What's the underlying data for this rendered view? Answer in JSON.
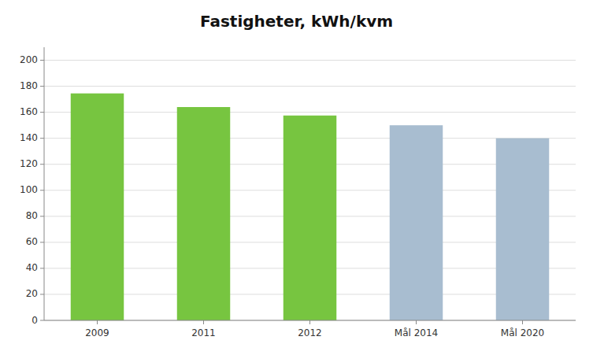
{
  "chart_data": {
    "type": "bar",
    "title": "Fastigheter, kWh/kvm",
    "categories": [
      "2009",
      "2011",
      "2012",
      "Mål 2014",
      "Mål 2020"
    ],
    "values": [
      174.5,
      164.0,
      157.5,
      150.0,
      140.0
    ],
    "colors": [
      "#77C540",
      "#77C540",
      "#77C540",
      "#A8BDD0",
      "#A8BDD0"
    ],
    "ylim": [
      0,
      210
    ],
    "yticks": [
      0,
      20,
      40,
      60,
      80,
      100,
      120,
      140,
      160,
      180,
      200
    ],
    "grid": true
  }
}
